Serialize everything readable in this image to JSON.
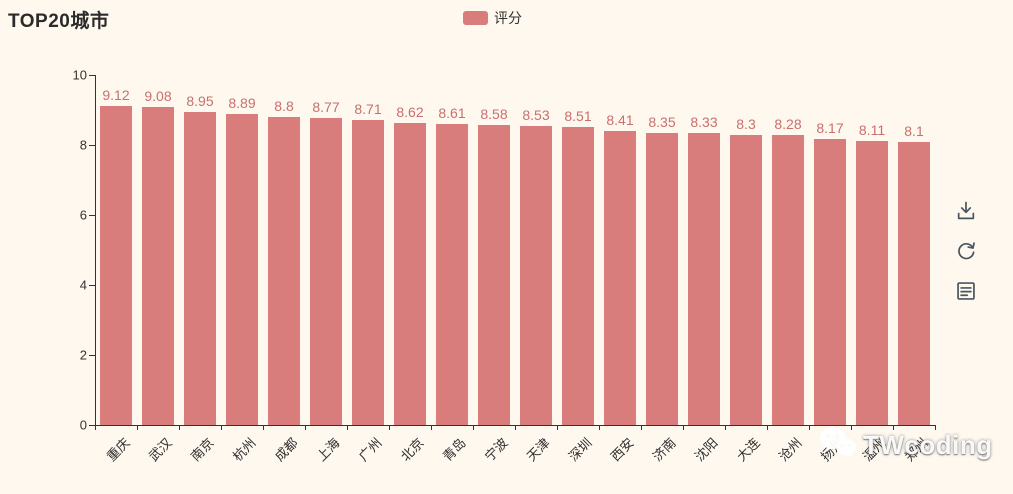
{
  "title": "TOP20城市",
  "legend": {
    "label": "评分"
  },
  "toolbox": {
    "items": [
      "save-as-image",
      "restore",
      "data-view"
    ]
  },
  "watermark": {
    "text": "TWcoding"
  },
  "colors": {
    "background": "#fef8ef",
    "bar": "#d87c7c",
    "value_label": "#c8706e",
    "axis": "#333333",
    "title_text": "#2b2b2b",
    "toolbox_icon": "#4a5560"
  },
  "chart_data": {
    "type": "bar",
    "title": "TOP20城市",
    "series_name": "评分",
    "legend": [
      "评分"
    ],
    "legend_position": "top-center",
    "grid": false,
    "categories": [
      "重庆",
      "武汉",
      "南京",
      "杭州",
      "成都",
      "上海",
      "广州",
      "北京",
      "青岛",
      "宁波",
      "天津",
      "深圳",
      "西安",
      "济南",
      "沈阳",
      "大连",
      "沧州",
      "扬州",
      "温州",
      "郑州"
    ],
    "values": [
      9.12,
      9.08,
      8.95,
      8.89,
      8.8,
      8.77,
      8.71,
      8.62,
      8.61,
      8.58,
      8.53,
      8.51,
      8.41,
      8.35,
      8.33,
      8.3,
      8.28,
      8.17,
      8.11,
      8.1
    ],
    "xlabel": "",
    "ylabel": "",
    "ylim": [
      0,
      10
    ],
    "yticks": [
      0,
      2,
      4,
      6,
      8,
      10
    ]
  }
}
